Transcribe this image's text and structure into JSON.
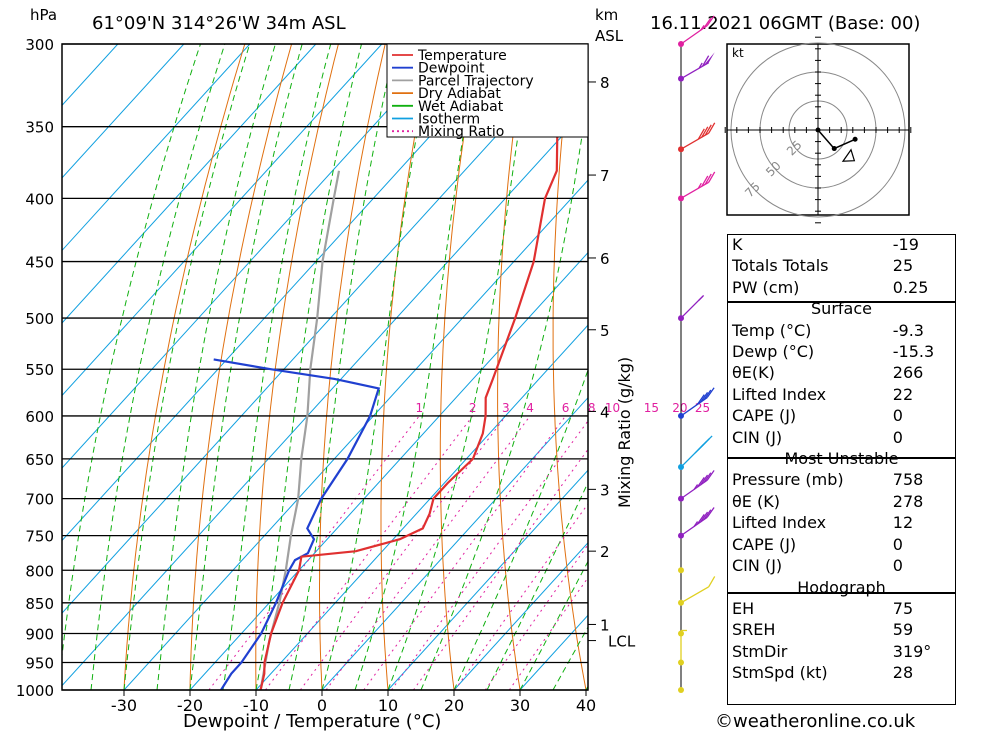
{
  "header": {
    "pressure_unit": "hPa",
    "location": "61°09'N  314°26'W  34m  ASL",
    "km_unit": "km",
    "km_sub": "ASL",
    "datetime": "16.11.2021  06GMT  (Base: 00)"
  },
  "colors": {
    "temperature": "#e03030",
    "dewpoint": "#2040d0",
    "parcel": "#a0a0a0",
    "dry_adiabat": "#e07010",
    "wet_adiabat": "#10b010",
    "isotherm": "#10a0e0",
    "mixing_ratio": "#e020a0"
  },
  "chart_data": {
    "type": "line",
    "title": "61°09'N  314°26'W  34m  ASL",
    "xlabel": "Dewpoint / Temperature (°C)",
    "ylabel": "hPa",
    "right_label": "Mixing Ratio (g/kg)",
    "xlim": [
      -40,
      40
    ],
    "ylim": [
      1000,
      300
    ],
    "x_ticks": [
      -30,
      -20,
      -10,
      0,
      10,
      20,
      30,
      40
    ],
    "pressure_levels": [
      300,
      350,
      400,
      450,
      500,
      550,
      600,
      650,
      700,
      750,
      800,
      850,
      900,
      950,
      1000
    ],
    "km_ticks": [
      {
        "label": "8",
        "p": 322
      },
      {
        "label": "7",
        "p": 383
      },
      {
        "label": "6",
        "p": 447
      },
      {
        "label": "5",
        "p": 511
      },
      {
        "label": "4",
        "p": 595
      },
      {
        "label": "3",
        "p": 688
      },
      {
        "label": "2",
        "p": 772
      },
      {
        "label": "1",
        "p": 885
      }
    ],
    "lcl": {
      "label": "LCL",
      "p": 912
    },
    "mixing_ratio_labels": [
      "1",
      "2",
      "3",
      "4",
      "6",
      "8",
      "10",
      "15",
      "20",
      "25"
    ],
    "legend": [
      "Temperature",
      "Dewpoint",
      "Parcel Trajectory",
      "Dry Adiabat",
      "Wet Adiabat",
      "Isotherm",
      "Mixing Ratio"
    ],
    "legend_position": "top-right",
    "series": [
      {
        "name": "Temperature",
        "points": [
          [
            1000,
            -9.3
          ],
          [
            970,
            -11
          ],
          [
            950,
            -12.5
          ],
          [
            900,
            -15.5
          ],
          [
            850,
            -18
          ],
          [
            800,
            -20
          ],
          [
            780,
            -21.5
          ],
          [
            772,
            -14
          ],
          [
            755,
            -9
          ],
          [
            740,
            -7
          ],
          [
            720,
            -8
          ],
          [
            700,
            -9.5
          ],
          [
            680,
            -9.5
          ],
          [
            650,
            -9
          ],
          [
            620,
            -11
          ],
          [
            600,
            -13
          ],
          [
            580,
            -15.5
          ],
          [
            560,
            -17
          ],
          [
            500,
            -22
          ],
          [
            450,
            -27
          ],
          [
            400,
            -34
          ],
          [
            380,
            -36
          ],
          [
            350,
            -42
          ],
          [
            320,
            -48
          ],
          [
            305,
            -49
          ],
          [
            300,
            -49
          ]
        ]
      },
      {
        "name": "Dewpoint",
        "points": [
          [
            1000,
            -15.3
          ],
          [
            970,
            -16
          ],
          [
            950,
            -16
          ],
          [
            900,
            -17
          ],
          [
            850,
            -19
          ],
          [
            800,
            -21.5
          ],
          [
            785,
            -22
          ],
          [
            775,
            -21
          ],
          [
            755,
            -22
          ],
          [
            740,
            -24.5
          ],
          [
            700,
            -26.5
          ],
          [
            650,
            -28
          ],
          [
            600,
            -30.5
          ],
          [
            570,
            -33
          ],
          [
            560,
            -41
          ],
          [
            550,
            -52
          ],
          [
            540,
            -62
          ]
        ]
      },
      {
        "name": "Parcel Trajectory",
        "points": [
          [
            1000,
            -9.3
          ],
          [
            912,
            -14.8
          ],
          [
            850,
            -18.5
          ],
          [
            800,
            -22
          ],
          [
            750,
            -26
          ],
          [
            700,
            -30
          ],
          [
            650,
            -35
          ],
          [
            600,
            -40
          ],
          [
            550,
            -46
          ],
          [
            500,
            -52
          ],
          [
            450,
            -59
          ],
          [
            400,
            -66
          ],
          [
            380,
            -69
          ]
        ]
      }
    ],
    "wind_barbs": [
      {
        "p": 300,
        "color": "#e020a0",
        "dir": 305,
        "speed": 25
      },
      {
        "p": 320,
        "color": "#9020c0",
        "dir": 300,
        "speed": 65
      },
      {
        "p": 365,
        "color": "#e03030",
        "dir": 300,
        "speed": 40
      },
      {
        "p": 400,
        "color": "#e020a0",
        "dir": 300,
        "speed": 35
      },
      {
        "p": 500,
        "color": "#9020c0",
        "dir": 315,
        "speed": 55
      },
      {
        "p": 600,
        "color": "#2040d0",
        "dir": 305,
        "speed": 40
      },
      {
        "p": 660,
        "color": "#10a0e0",
        "dir": 315,
        "speed": 40
      },
      {
        "p": 700,
        "color": "#9020c0",
        "dir": 305,
        "speed": 45
      },
      {
        "p": 750,
        "color": "#9020c0",
        "dir": 305,
        "speed": 45
      },
      {
        "p": 800,
        "color": "#e0d020",
        "dir": 0,
        "speed": 0
      },
      {
        "p": 850,
        "color": "#e0d020",
        "dir": 300,
        "speed": 10
      },
      {
        "p": 900,
        "color": "#e0d020",
        "dir": 0,
        "speed": 0
      },
      {
        "p": 950,
        "color": "#e0d020",
        "dir": 0,
        "speed": 5
      },
      {
        "p": 1000,
        "color": "#e0d020",
        "dir": 0,
        "speed": 0
      }
    ],
    "hodograph": {
      "unit": "kt",
      "ring_labels": [
        "25",
        "50",
        "75"
      ],
      "points": [
        [
          0,
          0
        ],
        [
          14,
          -16
        ],
        [
          32,
          -8
        ]
      ],
      "storm_motion": [
        25,
        -22
      ]
    }
  },
  "stats": {
    "general": [
      {
        "label": "K",
        "value": "-19"
      },
      {
        "label": "Totals Totals",
        "value": "25"
      },
      {
        "label": "PW (cm)",
        "value": "0.25"
      }
    ],
    "surface_title": "Surface",
    "surface": [
      {
        "label": "Temp (°C)",
        "value": "-9.3"
      },
      {
        "label": "Dewp (°C)",
        "value": "-15.3"
      },
      {
        "label": "θE(K)",
        "value": "266"
      },
      {
        "label": "Lifted Index",
        "value": "22"
      },
      {
        "label": "CAPE (J)",
        "value": "0"
      },
      {
        "label": "CIN (J)",
        "value": "0"
      }
    ],
    "mu_title": "Most Unstable",
    "mu": [
      {
        "label": "Pressure (mb)",
        "value": "758"
      },
      {
        "label": "θE (K)",
        "value": "278"
      },
      {
        "label": "Lifted Index",
        "value": "12"
      },
      {
        "label": "CAPE (J)",
        "value": "0"
      },
      {
        "label": "CIN (J)",
        "value": "0"
      }
    ],
    "hodo_title": "Hodograph",
    "hodo": [
      {
        "label": "EH",
        "value": "75"
      },
      {
        "label": "SREH",
        "value": "59"
      },
      {
        "label": "StmDir",
        "value": "319°"
      },
      {
        "label": "StmSpd (kt)",
        "value": "28"
      }
    ]
  },
  "credit": "©weatheronline.co.uk"
}
